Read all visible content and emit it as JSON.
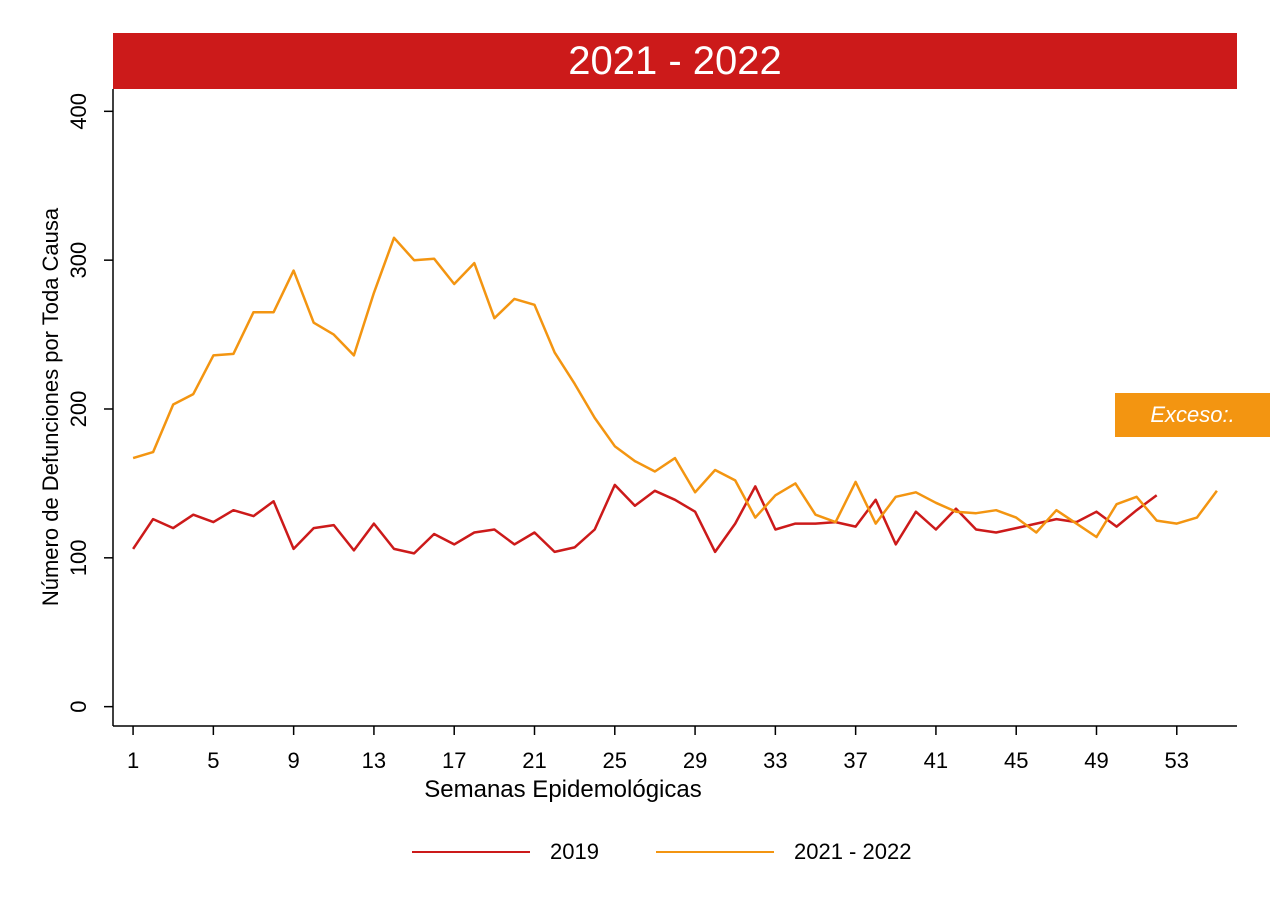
{
  "header": {
    "title": "2021 - 2022"
  },
  "badge": {
    "label": "Exceso:."
  },
  "colors": {
    "title_bar": "#cc1a1a",
    "series_2019": "#cc1a1a",
    "series_2021_2022": "#f39511",
    "badge": "#f39511"
  },
  "chart_data": {
    "type": "line",
    "title": "2021 - 2022",
    "xlabel": "Semanas Epidemológicas",
    "ylabel": "Número de Defunciones por Toda Causa",
    "xlim": [
      0,
      56
    ],
    "ylim": [
      -13,
      415
    ],
    "xticks": [
      1,
      5,
      9,
      13,
      17,
      21,
      25,
      29,
      33,
      37,
      41,
      45,
      49,
      53
    ],
    "yticks": [
      0,
      100,
      200,
      300,
      400
    ],
    "grid": false,
    "legend_position": "bottom",
    "series": [
      {
        "name": "2019",
        "color": "#cc1a1a",
        "x": [
          1,
          2,
          3,
          4,
          5,
          6,
          7,
          8,
          9,
          10,
          11,
          12,
          13,
          14,
          15,
          16,
          17,
          18,
          19,
          20,
          21,
          22,
          23,
          24,
          25,
          26,
          27,
          28,
          29,
          30,
          31,
          32,
          33,
          34,
          35,
          36,
          37,
          38,
          39,
          40,
          41,
          42,
          43,
          44,
          45,
          46,
          47,
          48,
          49,
          50,
          51,
          52
        ],
        "values": [
          106,
          126,
          120,
          129,
          124,
          132,
          128,
          138,
          106,
          120,
          122,
          105,
          123,
          106,
          103,
          116,
          109,
          117,
          119,
          109,
          117,
          104,
          107,
          119,
          149,
          135,
          145,
          139,
          131,
          104,
          123,
          148,
          119,
          123,
          123,
          124,
          121,
          139,
          109,
          131,
          119,
          133,
          119,
          117,
          120,
          123,
          126,
          124,
          131,
          121,
          132,
          142
        ]
      },
      {
        "name": "2021 - 2022",
        "color": "#f39511",
        "x": [
          1,
          2,
          3,
          4,
          5,
          6,
          7,
          8,
          9,
          10,
          11,
          12,
          13,
          14,
          15,
          16,
          17,
          18,
          19,
          20,
          21,
          22,
          23,
          24,
          25,
          26,
          27,
          28,
          29,
          30,
          31,
          32,
          33,
          34,
          35,
          36,
          37,
          38,
          39,
          40,
          41,
          42,
          43,
          44,
          45,
          46,
          47,
          48,
          49,
          50,
          51,
          52,
          53,
          54,
          55
        ],
        "values": [
          167,
          171,
          203,
          210,
          236,
          237,
          265,
          265,
          293,
          258,
          250,
          236,
          278,
          315,
          300,
          301,
          284,
          298,
          261,
          274,
          270,
          238,
          217,
          194,
          175,
          165,
          158,
          167,
          144,
          159,
          152,
          127,
          142,
          150,
          129,
          124,
          151,
          123,
          141,
          144,
          137,
          131,
          130,
          132,
          127,
          117,
          132,
          123,
          114,
          136,
          141,
          125,
          123,
          127,
          145
        ]
      }
    ]
  },
  "legend": {
    "items": [
      {
        "label": "2019",
        "color": "#cc1a1a"
      },
      {
        "label": "2021 - 2022",
        "color": "#f39511"
      }
    ]
  }
}
